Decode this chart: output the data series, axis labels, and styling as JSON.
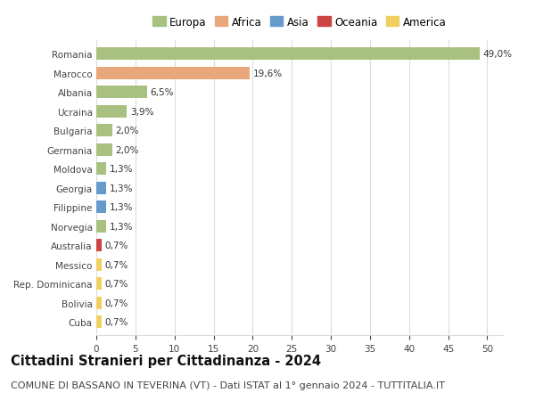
{
  "countries": [
    "Romania",
    "Marocco",
    "Albania",
    "Ucraina",
    "Bulgaria",
    "Germania",
    "Moldova",
    "Georgia",
    "Filippine",
    "Norvegia",
    "Australia",
    "Messico",
    "Rep. Dominicana",
    "Bolivia",
    "Cuba"
  ],
  "values": [
    49.0,
    19.6,
    6.5,
    3.9,
    2.0,
    2.0,
    1.3,
    1.3,
    1.3,
    1.3,
    0.7,
    0.7,
    0.7,
    0.7,
    0.7
  ],
  "labels": [
    "49,0%",
    "19,6%",
    "6,5%",
    "3,9%",
    "2,0%",
    "2,0%",
    "1,3%",
    "1,3%",
    "1,3%",
    "1,3%",
    "0,7%",
    "0,7%",
    "0,7%",
    "0,7%",
    "0,7%"
  ],
  "continents": [
    "Europa",
    "Africa",
    "Europa",
    "Europa",
    "Europa",
    "Europa",
    "Europa",
    "Asia",
    "Asia",
    "Europa",
    "Oceania",
    "America",
    "America",
    "America",
    "America"
  ],
  "continent_colors": {
    "Europa": "#a8c080",
    "Africa": "#e8a87c",
    "Asia": "#6699cc",
    "Oceania": "#cc4444",
    "America": "#f0d060"
  },
  "legend_order": [
    "Europa",
    "Africa",
    "Asia",
    "Oceania",
    "America"
  ],
  "title": "Cittadini Stranieri per Cittadinanza - 2024",
  "subtitle": "COMUNE DI BASSANO IN TEVERINA (VT) - Dati ISTAT al 1° gennaio 2024 - TUTTITALIA.IT",
  "xlim": [
    0,
    52
  ],
  "xticks": [
    0,
    5,
    10,
    15,
    20,
    25,
    30,
    35,
    40,
    45,
    50
  ],
  "bg_color": "#ffffff",
  "grid_color": "#dddddd",
  "bar_height": 0.65,
  "title_fontsize": 10.5,
  "subtitle_fontsize": 8,
  "label_fontsize": 7.5,
  "tick_fontsize": 7.5,
  "legend_fontsize": 8.5
}
